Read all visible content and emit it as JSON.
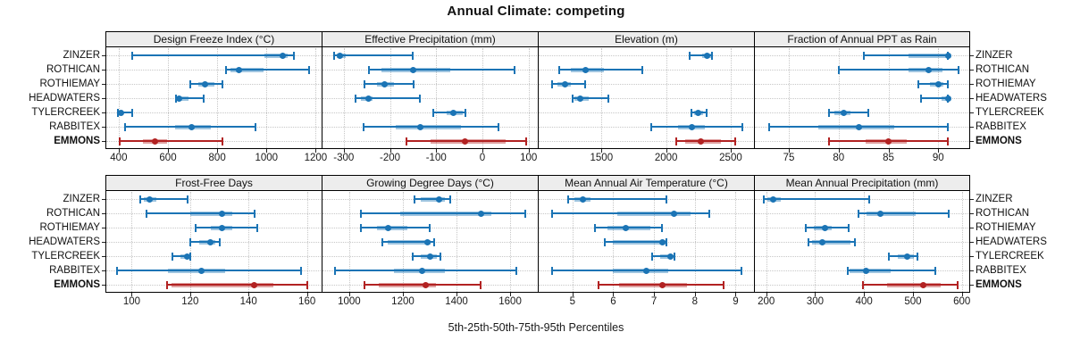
{
  "title": "Annual Climate: competing",
  "caption": "5th-25th-50th-75th-95th Percentiles",
  "sites": [
    "ZINZER",
    "ROTHICAN",
    "ROTHIEMAY",
    "HEADWATERS",
    "TYLERCREEK",
    "RABBITEX",
    "EMMONS"
  ],
  "highlight_site": "EMMONS",
  "colors": {
    "series": "#1b74b5",
    "series_band": "rgba(27,116,181,0.42)",
    "highlight": "#b22222",
    "highlight_band": "rgba(178,34,34,0.42)",
    "grid": "#c7c7c7",
    "strip_bg": "#ededed",
    "border": "#000000"
  },
  "chart_data": {
    "type": "dotplot-interval",
    "percentiles": [
      5,
      25,
      50,
      75,
      95
    ],
    "legend_note": "5th-95th thin line with end caps, 25th-75th thick band, dot at median",
    "panels": [
      {
        "title": "Design Freeze Index (°C)",
        "row": 0,
        "col": 0,
        "xlim": [
          346,
          1224
        ],
        "ticks": [
          400,
          600,
          800,
          1000,
          1200
        ],
        "series": [
          {
            "site": "ZINZER",
            "values": [
              455,
              990,
              1065,
              1085,
              1110
            ]
          },
          {
            "site": "ROTHICAN",
            "values": [
              835,
              855,
              890,
              990,
              1175
            ]
          },
          {
            "site": "ROTHIEMAY",
            "values": [
              690,
              725,
              750,
              790,
              820
            ]
          },
          {
            "site": "HEADWATERS",
            "values": [
              633,
              638,
              646,
              685,
              745
            ]
          },
          {
            "site": "TYLERCREEK",
            "values": [
              395,
              400,
              410,
              420,
              455
            ]
          },
          {
            "site": "RABBITEX",
            "values": [
              425,
              630,
              695,
              775,
              955
            ]
          },
          {
            "site": "EMMONS",
            "values": [
              403,
              497,
              548,
              598,
              823
            ]
          }
        ]
      },
      {
        "title": "Effective Precipitation (mm)",
        "row": 0,
        "col": 1,
        "xlim": [
          -348,
          120
        ],
        "ticks": [
          -300,
          -200,
          -100,
          0,
          100
        ],
        "series": [
          {
            "site": "ZINZER",
            "values": [
              -320,
              -315,
              -308,
              -295,
              -150
            ]
          },
          {
            "site": "ROTHICAN",
            "values": [
              -245,
              -218,
              -150,
              -70,
              70
            ]
          },
          {
            "site": "ROTHIEMAY",
            "values": [
              -255,
              -228,
              -212,
              -192,
              -148
            ]
          },
          {
            "site": "HEADWATERS",
            "values": [
              -275,
              -262,
              -246,
              -237,
              -135
            ]
          },
          {
            "site": "TYLERCREEK",
            "values": [
              -106,
              -77,
              -62,
              -42,
              -37
            ]
          },
          {
            "site": "RABBITEX",
            "values": [
              -258,
              -188,
              -135,
              -47,
              35
            ]
          },
          {
            "site": "EMMONS",
            "values": [
              -165,
              -112,
              -37,
              50,
              95
            ]
          }
        ]
      },
      {
        "title": "Elevation (m)",
        "row": 0,
        "col": 2,
        "xlim": [
          1007,
          2680
        ],
        "ticks": [
          1500,
          2000,
          2500
        ],
        "series": [
          {
            "site": "ZINZER",
            "values": [
              2180,
              2280,
              2320,
              2345,
              2355
            ]
          },
          {
            "site": "ROTHICAN",
            "values": [
              1175,
              1265,
              1375,
              1520,
              1815
            ]
          },
          {
            "site": "ROTHIEMAY",
            "values": [
              1115,
              1160,
              1215,
              1265,
              1375
            ]
          },
          {
            "site": "HEADWATERS",
            "values": [
              1277,
              1293,
              1334,
              1400,
              1550
            ]
          },
          {
            "site": "TYLERCREEK",
            "values": [
              2197,
              2220,
              2247,
              2284,
              2316
            ]
          },
          {
            "site": "RABBITEX",
            "values": [
              1886,
              2093,
              2197,
              2300,
              2588
            ]
          },
          {
            "site": "EMMONS",
            "values": [
              2082,
              2150,
              2270,
              2427,
              2535
            ]
          }
        ]
      },
      {
        "title": "Fraction of Annual PPT as Rain",
        "row": 0,
        "col": 3,
        "xlim": [
          71.5,
          93.2
        ],
        "ticks": [
          75,
          80,
          85,
          90
        ],
        "series": [
          {
            "site": "ZINZER",
            "values": [
              82.5,
              87,
              91,
              91,
              91
            ]
          },
          {
            "site": "ROTHICAN",
            "values": [
              80,
              87,
              89,
              90.4,
              92
            ]
          },
          {
            "site": "ROTHIEMAY",
            "values": [
              88,
              89.2,
              90,
              90.5,
              91
            ]
          },
          {
            "site": "HEADWATERS",
            "values": [
              88.3,
              90.3,
              91,
              91,
              91
            ]
          },
          {
            "site": "TYLERCREEK",
            "values": [
              79,
              79.6,
              80.5,
              81.2,
              83
            ]
          },
          {
            "site": "RABBITEX",
            "values": [
              73,
              78,
              82,
              85.6,
              91
            ]
          },
          {
            "site": "EMMONS",
            "values": [
              79,
              82.7,
              85,
              86.8,
              91
            ]
          }
        ]
      },
      {
        "title": "Frost-Free Days",
        "row": 1,
        "col": 0,
        "xlim": [
          91,
          165
        ],
        "ticks": [
          100,
          120,
          140,
          160
        ],
        "series": [
          {
            "site": "ZINZER",
            "values": [
              103,
              104,
              106,
              108.5,
              119
            ]
          },
          {
            "site": "ROTHICAN",
            "values": [
              105,
              120,
              131,
              134.5,
              142
            ]
          },
          {
            "site": "ROTHIEMAY",
            "values": [
              122,
              127,
              131,
              134.5,
              143
            ]
          },
          {
            "site": "HEADWATERS",
            "values": [
              120,
              123,
              127,
              128.7,
              130
            ]
          },
          {
            "site": "TYLERCREEK",
            "values": [
              114,
              116.6,
              119,
              119.5,
              120
            ]
          },
          {
            "site": "RABBITEX",
            "values": [
              95,
              112.5,
              124,
              132,
              158
            ]
          },
          {
            "site": "EMMONS",
            "values": [
              112,
              113.5,
              142,
              148.5,
              160
            ]
          }
        ]
      },
      {
        "title": "Growing Degree Days (°C)",
        "row": 1,
        "col": 1,
        "xlim": [
          897,
          1703
        ],
        "ticks": [
          1000,
          1200,
          1400,
          1600
        ],
        "series": [
          {
            "site": "ZINZER",
            "values": [
              1242,
              1266,
              1336,
              1355,
              1375
            ]
          },
          {
            "site": "ROTHICAN",
            "values": [
              1042,
              1190,
              1492,
              1530,
              1657
            ]
          },
          {
            "site": "ROTHIEMAY",
            "values": [
              1044,
              1105,
              1144,
              1216,
              1300
            ]
          },
          {
            "site": "HEADWATERS",
            "values": [
              1124,
              1142,
              1291,
              1305,
              1316
            ]
          },
          {
            "site": "TYLERCREEK",
            "values": [
              1236,
              1266,
              1302,
              1328,
              1339
            ]
          },
          {
            "site": "RABBITEX",
            "values": [
              948,
              1166,
              1272,
              1355,
              1624
            ]
          },
          {
            "site": "EMMONS",
            "values": [
              1056,
              1111,
              1286,
              1322,
              1489
            ]
          }
        ]
      },
      {
        "title": "Mean Annual Air Temperature (°C)",
        "row": 1,
        "col": 2,
        "xlim": [
          4.15,
          9.45
        ],
        "ticks": [
          5,
          6,
          7,
          8,
          9
        ],
        "series": [
          {
            "site": "ZINZER",
            "values": [
              4.9,
              5.05,
              5.25,
              5.45,
              7.3
            ]
          },
          {
            "site": "ROTHICAN",
            "values": [
              4.5,
              6.1,
              7.5,
              7.9,
              8.35
            ]
          },
          {
            "site": "ROTHIEMAY",
            "values": [
              5.55,
              5.85,
              6.3,
              6.9,
              7.2
            ]
          },
          {
            "site": "HEADWATERS",
            "values": [
              5.8,
              6.0,
              7.2,
              7.28,
              7.3
            ]
          },
          {
            "site": "TYLERCREEK",
            "values": [
              6.95,
              7.15,
              7.4,
              7.45,
              7.5
            ]
          },
          {
            "site": "RABBITEX",
            "values": [
              4.5,
              6.0,
              6.8,
              7.35,
              9.15
            ]
          },
          {
            "site": "EMMONS",
            "values": [
              5.65,
              6.15,
              7.2,
              7.8,
              8.7
            ]
          }
        ]
      },
      {
        "title": "Mean Annual Precipitation (mm)",
        "row": 1,
        "col": 3,
        "xlim": [
          175,
          617
        ],
        "ticks": [
          200,
          300,
          400,
          500,
          600
        ],
        "series": [
          {
            "site": "ZINZER",
            "values": [
              196,
              202,
              215,
              230,
              410
            ]
          },
          {
            "site": "ROTHICAN",
            "values": [
              389,
              406,
              433,
              506,
              573
            ]
          },
          {
            "site": "ROTHIEMAY",
            "values": [
              281,
              297,
              320,
              334,
              368
            ]
          },
          {
            "site": "HEADWATERS",
            "values": [
              286,
              294,
              314,
              373,
              381
            ]
          },
          {
            "site": "TYLERCREEK",
            "values": [
              451,
              469,
              489,
              502,
              509
            ]
          },
          {
            "site": "RABBITEX",
            "values": [
              366,
              370,
              404,
              454,
              545
            ]
          },
          {
            "site": "EMMONS",
            "values": [
              397,
              448,
              521,
              556,
              591
            ]
          }
        ]
      }
    ]
  }
}
